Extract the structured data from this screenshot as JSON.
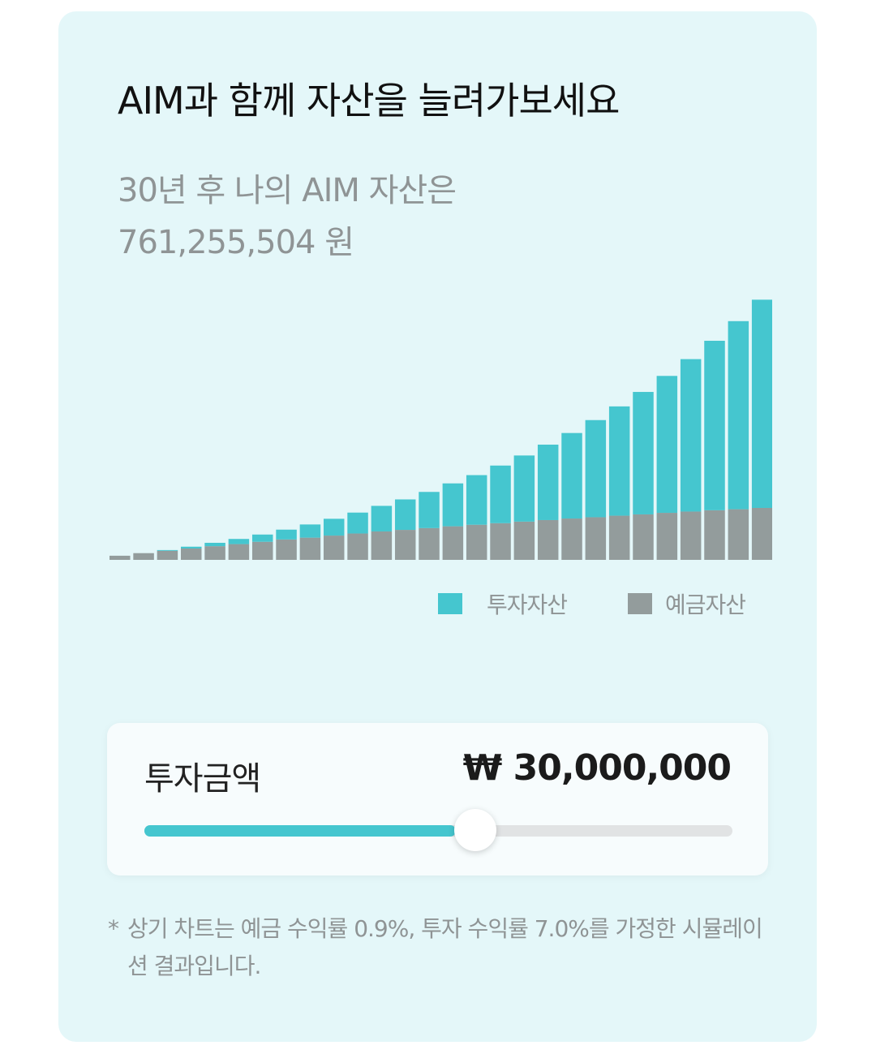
{
  "title": "AIM과 함께 자산을 늘려가보세요",
  "projection": {
    "line1": "30년 후 나의 AIM 자산은",
    "line2": "761,255,504 원"
  },
  "chart_data": {
    "type": "bar",
    "stacked": true,
    "categories": [
      "1",
      "2",
      "3",
      "4",
      "5",
      "6",
      "7",
      "8",
      "9",
      "10",
      "11",
      "12",
      "13",
      "14",
      "15",
      "16",
      "17",
      "18",
      "19",
      "20",
      "21",
      "22",
      "23",
      "24",
      "25",
      "26",
      "27",
      "28",
      "29",
      "30"
    ],
    "series": [
      {
        "name": "예금자산",
        "color": "#939c9c",
        "values": [
          1.6,
          2.6,
          3.5,
          4.4,
          5.3,
          6.1,
          7.0,
          7.9,
          8.6,
          9.4,
          10.2,
          11.0,
          11.6,
          12.3,
          13.0,
          13.6,
          14.2,
          14.8,
          15.4,
          16.0,
          16.5,
          17.1,
          17.6,
          18.2,
          18.7,
          19.2,
          19.6,
          20.1,
          20.6,
          21.0
        ]
      },
      {
        "name": "투자자산",
        "color": "#45c6cf",
        "values": [
          0.0,
          0.0,
          0.3,
          0.7,
          1.3,
          2.0,
          2.8,
          3.8,
          5.1,
          6.5,
          8.1,
          9.9,
          11.8,
          14.0,
          16.6,
          19.2,
          22.3,
          25.6,
          29.2,
          33.1,
          37.6,
          42.3,
          47.4,
          53.0,
          59.0,
          65.6,
          72.8,
          80.6,
          88.6,
          97.4
        ]
      }
    ],
    "legend_position": "bottom-right",
    "grid": false
  },
  "legend": {
    "invest_label": "투자자산",
    "deposit_label": "예금자산",
    "invest_color": "#45c6cf",
    "deposit_color": "#939c9c"
  },
  "slider": {
    "label": "투자금액",
    "value_text": "₩ 30,000,000",
    "fraction": 0.53
  },
  "footnote": {
    "star": "*",
    "text": "상기 차트는 예금 수익률 0.9%, 투자 수익률 7.0%를 가정한 시뮬레이션 결과입니다."
  }
}
